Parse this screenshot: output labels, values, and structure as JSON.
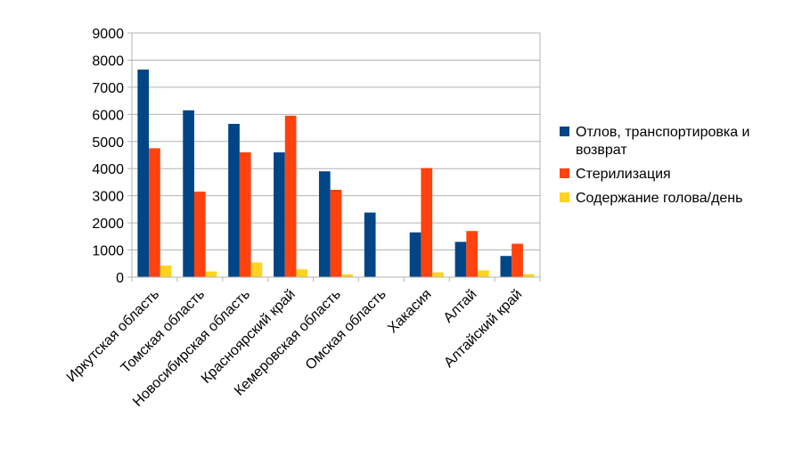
{
  "chart_data": {
    "type": "bar",
    "categories": [
      "Иркутская область",
      "Томская область",
      "Новосибирская область",
      "Красноярский край",
      "Кемеровская область",
      "Омская область",
      "Хакасия",
      "Алтай",
      "Алтайский край"
    ],
    "series": [
      {
        "name": "Отлов, транспортировка и возврат",
        "color": "#004586",
        "values": [
          7650,
          6150,
          5650,
          4600,
          3900,
          2380,
          1650,
          1300,
          780
        ]
      },
      {
        "name": "Стерилизация",
        "color": "#ff420e",
        "values": [
          4750,
          3150,
          4600,
          5950,
          3220,
          0,
          4020,
          1700,
          1230
        ]
      },
      {
        "name": "Содержание голова/день",
        "color": "#ffd320",
        "values": [
          430,
          210,
          540,
          290,
          100,
          0,
          180,
          250,
          110
        ]
      }
    ],
    "legend_lines": [
      [
        "Отлов, транспортировка и",
        "возврат"
      ],
      [
        "Стерилизация"
      ],
      [
        "Содержание голова/день"
      ]
    ],
    "title": "",
    "xlabel": "",
    "ylabel": "",
    "ylim": [
      0,
      9000
    ],
    "yticks": [
      0,
      1000,
      2000,
      3000,
      4000,
      5000,
      6000,
      7000,
      8000,
      9000
    ],
    "ytick_labels": [
      "0",
      "1000",
      "2000",
      "3000",
      "4000",
      "5000",
      "6000",
      "7000",
      "8000",
      "9000"
    ],
    "grid": true,
    "legend_position": "right"
  }
}
